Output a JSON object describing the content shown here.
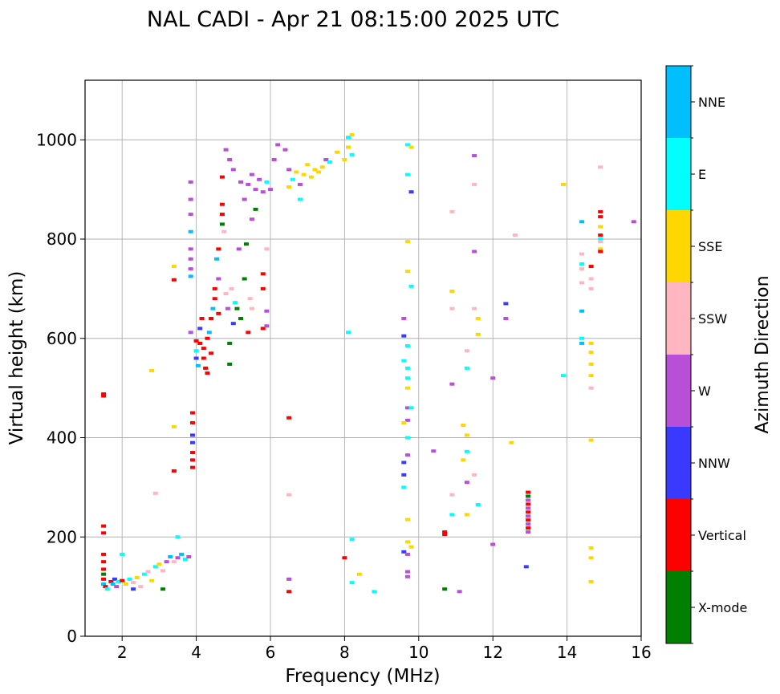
{
  "chart_data": {
    "type": "scatter",
    "title": "NAL CADI - Apr 21 08:15:00 2025 UTC",
    "xlabel": "Frequency (MHz)",
    "ylabel": "Virtual height (km)",
    "xlim": [
      1,
      16
    ],
    "ylim": [
      0,
      1120
    ],
    "xticks": [
      2,
      4,
      6,
      8,
      10,
      12,
      14,
      16
    ],
    "yticks": [
      0,
      200,
      400,
      600,
      800,
      1000
    ],
    "grid": true,
    "colorbar": {
      "label": "Azimuth Direction",
      "position": "right",
      "categories": [
        {
          "label": "X-mode",
          "color": "#008000"
        },
        {
          "label": "Vertical",
          "color": "#ff0000"
        },
        {
          "label": "NNW",
          "color": "#3a3aff"
        },
        {
          "label": "W",
          "color": "#b94fd8"
        },
        {
          "label": "SSW",
          "color": "#ffb6c1"
        },
        {
          "label": "SSE",
          "color": "#ffd700"
        },
        {
          "label": "E",
          "color": "#00ffff"
        },
        {
          "label": "NNE",
          "color": "#00bfff"
        }
      ]
    },
    "points": [
      {
        "x": 1.5,
        "y": 488,
        "c": 1
      },
      {
        "x": 1.5,
        "y": 484,
        "c": 1
      },
      {
        "x": 1.5,
        "y": 222,
        "c": 1
      },
      {
        "x": 1.5,
        "y": 208,
        "c": 1
      },
      {
        "x": 1.5,
        "y": 165,
        "c": 1
      },
      {
        "x": 1.5,
        "y": 150,
        "c": 1
      },
      {
        "x": 1.5,
        "y": 135,
        "c": 1
      },
      {
        "x": 1.5,
        "y": 125,
        "c": 0
      },
      {
        "x": 1.5,
        "y": 115,
        "c": 1
      },
      {
        "x": 1.5,
        "y": 105,
        "c": 7
      },
      {
        "x": 1.55,
        "y": 100,
        "c": 1
      },
      {
        "x": 1.6,
        "y": 95,
        "c": 6
      },
      {
        "x": 1.7,
        "y": 110,
        "c": 1
      },
      {
        "x": 1.75,
        "y": 105,
        "c": 7
      },
      {
        "x": 1.8,
        "y": 115,
        "c": 2
      },
      {
        "x": 1.85,
        "y": 100,
        "c": 3
      },
      {
        "x": 1.9,
        "y": 110,
        "c": 6
      },
      {
        "x": 2.0,
        "y": 112,
        "c": 1
      },
      {
        "x": 2.1,
        "y": 105,
        "c": 5
      },
      {
        "x": 2.2,
        "y": 115,
        "c": 6
      },
      {
        "x": 2.3,
        "y": 108,
        "c": 4
      },
      {
        "x": 2.4,
        "y": 118,
        "c": 5
      },
      {
        "x": 2.5,
        "y": 100,
        "c": 4
      },
      {
        "x": 2.6,
        "y": 125,
        "c": 6
      },
      {
        "x": 2.7,
        "y": 130,
        "c": 4
      },
      {
        "x": 2.8,
        "y": 112,
        "c": 5
      },
      {
        "x": 2.9,
        "y": 140,
        "c": 6
      },
      {
        "x": 3.0,
        "y": 145,
        "c": 5
      },
      {
        "x": 3.1,
        "y": 132,
        "c": 4
      },
      {
        "x": 3.2,
        "y": 150,
        "c": 3
      },
      {
        "x": 3.3,
        "y": 160,
        "c": 7
      },
      {
        "x": 3.4,
        "y": 150,
        "c": 4
      },
      {
        "x": 3.5,
        "y": 158,
        "c": 3
      },
      {
        "x": 3.6,
        "y": 165,
        "c": 7
      },
      {
        "x": 3.7,
        "y": 155,
        "c": 6
      },
      {
        "x": 3.8,
        "y": 160,
        "c": 3
      },
      {
        "x": 2.0,
        "y": 165,
        "c": 6
      },
      {
        "x": 2.3,
        "y": 95,
        "c": 2
      },
      {
        "x": 3.1,
        "y": 95,
        "c": 0
      },
      {
        "x": 3.5,
        "y": 200,
        "c": 6
      },
      {
        "x": 2.8,
        "y": 535,
        "c": 5
      },
      {
        "x": 2.9,
        "y": 288,
        "c": 4
      },
      {
        "x": 3.4,
        "y": 422,
        "c": 5
      },
      {
        "x": 3.4,
        "y": 333,
        "c": 1
      },
      {
        "x": 3.4,
        "y": 745,
        "c": 5
      },
      {
        "x": 3.4,
        "y": 718,
        "c": 1
      },
      {
        "x": 3.85,
        "y": 915,
        "c": 3
      },
      {
        "x": 3.85,
        "y": 880,
        "c": 3
      },
      {
        "x": 3.85,
        "y": 850,
        "c": 3
      },
      {
        "x": 3.85,
        "y": 815,
        "c": 7
      },
      {
        "x": 3.85,
        "y": 780,
        "c": 3
      },
      {
        "x": 3.85,
        "y": 760,
        "c": 3
      },
      {
        "x": 3.85,
        "y": 740,
        "c": 3
      },
      {
        "x": 3.85,
        "y": 725,
        "c": 7
      },
      {
        "x": 3.85,
        "y": 612,
        "c": 3
      },
      {
        "x": 3.9,
        "y": 450,
        "c": 1
      },
      {
        "x": 3.9,
        "y": 430,
        "c": 1
      },
      {
        "x": 3.9,
        "y": 405,
        "c": 2
      },
      {
        "x": 3.9,
        "y": 390,
        "c": 2
      },
      {
        "x": 3.9,
        "y": 370,
        "c": 1
      },
      {
        "x": 3.9,
        "y": 355,
        "c": 1
      },
      {
        "x": 3.9,
        "y": 340,
        "c": 1
      },
      {
        "x": 4.0,
        "y": 595,
        "c": 1
      },
      {
        "x": 4.0,
        "y": 575,
        "c": 6
      },
      {
        "x": 4.0,
        "y": 560,
        "c": 2
      },
      {
        "x": 4.05,
        "y": 545,
        "c": 7
      },
      {
        "x": 4.1,
        "y": 620,
        "c": 2
      },
      {
        "x": 4.1,
        "y": 590,
        "c": 1
      },
      {
        "x": 4.15,
        "y": 640,
        "c": 1
      },
      {
        "x": 4.2,
        "y": 580,
        "c": 1
      },
      {
        "x": 4.2,
        "y": 560,
        "c": 1
      },
      {
        "x": 4.25,
        "y": 540,
        "c": 1
      },
      {
        "x": 4.3,
        "y": 600,
        "c": 1
      },
      {
        "x": 4.3,
        "y": 530,
        "c": 1
      },
      {
        "x": 4.35,
        "y": 612,
        "c": 7
      },
      {
        "x": 4.4,
        "y": 570,
        "c": 1
      },
      {
        "x": 4.4,
        "y": 640,
        "c": 1
      },
      {
        "x": 4.45,
        "y": 660,
        "c": 7
      },
      {
        "x": 4.5,
        "y": 700,
        "c": 1
      },
      {
        "x": 4.5,
        "y": 680,
        "c": 1
      },
      {
        "x": 4.55,
        "y": 760,
        "c": 7
      },
      {
        "x": 4.6,
        "y": 780,
        "c": 1
      },
      {
        "x": 4.6,
        "y": 720,
        "c": 3
      },
      {
        "x": 4.6,
        "y": 650,
        "c": 1
      },
      {
        "x": 4.7,
        "y": 870,
        "c": 1
      },
      {
        "x": 4.7,
        "y": 850,
        "c": 1
      },
      {
        "x": 4.7,
        "y": 830,
        "c": 0
      },
      {
        "x": 4.7,
        "y": 925,
        "c": 1
      },
      {
        "x": 4.75,
        "y": 815,
        "c": 4
      },
      {
        "x": 4.8,
        "y": 690,
        "c": 4
      },
      {
        "x": 4.85,
        "y": 660,
        "c": 3
      },
      {
        "x": 4.9,
        "y": 590,
        "c": 0
      },
      {
        "x": 4.9,
        "y": 548,
        "c": 0
      },
      {
        "x": 4.95,
        "y": 700,
        "c": 4
      },
      {
        "x": 5.0,
        "y": 630,
        "c": 2
      },
      {
        "x": 5.05,
        "y": 672,
        "c": 6
      },
      {
        "x": 5.1,
        "y": 660,
        "c": 0
      },
      {
        "x": 5.15,
        "y": 780,
        "c": 3
      },
      {
        "x": 5.2,
        "y": 640,
        "c": 0
      },
      {
        "x": 5.3,
        "y": 720,
        "c": 0
      },
      {
        "x": 5.35,
        "y": 790,
        "c": 0
      },
      {
        "x": 5.4,
        "y": 612,
        "c": 1
      },
      {
        "x": 5.45,
        "y": 680,
        "c": 4
      },
      {
        "x": 5.5,
        "y": 660,
        "c": 4
      },
      {
        "x": 4.8,
        "y": 980,
        "c": 3
      },
      {
        "x": 4.9,
        "y": 960,
        "c": 3
      },
      {
        "x": 5.0,
        "y": 940,
        "c": 3
      },
      {
        "x": 5.2,
        "y": 915,
        "c": 3
      },
      {
        "x": 5.3,
        "y": 880,
        "c": 3
      },
      {
        "x": 5.4,
        "y": 910,
        "c": 3
      },
      {
        "x": 5.5,
        "y": 930,
        "c": 3
      },
      {
        "x": 5.6,
        "y": 900,
        "c": 3
      },
      {
        "x": 5.7,
        "y": 920,
        "c": 3
      },
      {
        "x": 5.8,
        "y": 895,
        "c": 3
      },
      {
        "x": 5.9,
        "y": 915,
        "c": 6
      },
      {
        "x": 6.0,
        "y": 900,
        "c": 3
      },
      {
        "x": 6.1,
        "y": 960,
        "c": 3
      },
      {
        "x": 6.2,
        "y": 990,
        "c": 3
      },
      {
        "x": 5.6,
        "y": 860,
        "c": 0
      },
      {
        "x": 5.5,
        "y": 840,
        "c": 3
      },
      {
        "x": 5.9,
        "y": 780,
        "c": 4
      },
      {
        "x": 5.8,
        "y": 730,
        "c": 1
      },
      {
        "x": 5.8,
        "y": 700,
        "c": 1
      },
      {
        "x": 5.8,
        "y": 620,
        "c": 1
      },
      {
        "x": 5.9,
        "y": 655,
        "c": 3
      },
      {
        "x": 5.9,
        "y": 625,
        "c": 3
      },
      {
        "x": 6.4,
        "y": 980,
        "c": 3
      },
      {
        "x": 6.5,
        "y": 940,
        "c": 3
      },
      {
        "x": 6.6,
        "y": 920,
        "c": 6
      },
      {
        "x": 6.7,
        "y": 935,
        "c": 5
      },
      {
        "x": 6.8,
        "y": 910,
        "c": 3
      },
      {
        "x": 6.9,
        "y": 930,
        "c": 5
      },
      {
        "x": 7.0,
        "y": 950,
        "c": 5
      },
      {
        "x": 7.1,
        "y": 925,
        "c": 5
      },
      {
        "x": 7.2,
        "y": 940,
        "c": 5
      },
      {
        "x": 7.3,
        "y": 935,
        "c": 5
      },
      {
        "x": 7.4,
        "y": 945,
        "c": 5
      },
      {
        "x": 7.5,
        "y": 960,
        "c": 3
      },
      {
        "x": 7.6,
        "y": 955,
        "c": 6
      },
      {
        "x": 7.8,
        "y": 975,
        "c": 5
      },
      {
        "x": 8.0,
        "y": 960,
        "c": 5
      },
      {
        "x": 8.1,
        "y": 985,
        "c": 5
      },
      {
        "x": 8.2,
        "y": 1010,
        "c": 5
      },
      {
        "x": 8.1,
        "y": 1005,
        "c": 6
      },
      {
        "x": 8.2,
        "y": 970,
        "c": 6
      },
      {
        "x": 6.8,
        "y": 880,
        "c": 6
      },
      {
        "x": 6.5,
        "y": 905,
        "c": 5
      },
      {
        "x": 6.5,
        "y": 440,
        "c": 1
      },
      {
        "x": 6.5,
        "y": 285,
        "c": 4
      },
      {
        "x": 6.5,
        "y": 115,
        "c": 3
      },
      {
        "x": 6.5,
        "y": 90,
        "c": 1
      },
      {
        "x": 8.0,
        "y": 158,
        "c": 1
      },
      {
        "x": 8.1,
        "y": 612,
        "c": 6
      },
      {
        "x": 8.2,
        "y": 195,
        "c": 6
      },
      {
        "x": 8.2,
        "y": 108,
        "c": 6
      },
      {
        "x": 8.4,
        "y": 125,
        "c": 5
      },
      {
        "x": 8.8,
        "y": 90,
        "c": 6
      },
      {
        "x": 9.7,
        "y": 990,
        "c": 6
      },
      {
        "x": 9.8,
        "y": 985,
        "c": 5
      },
      {
        "x": 9.7,
        "y": 930,
        "c": 6
      },
      {
        "x": 9.8,
        "y": 895,
        "c": 2
      },
      {
        "x": 9.7,
        "y": 795,
        "c": 5
      },
      {
        "x": 9.7,
        "y": 735,
        "c": 5
      },
      {
        "x": 9.8,
        "y": 705,
        "c": 6
      },
      {
        "x": 9.6,
        "y": 640,
        "c": 3
      },
      {
        "x": 9.6,
        "y": 605,
        "c": 2
      },
      {
        "x": 9.7,
        "y": 585,
        "c": 6
      },
      {
        "x": 9.6,
        "y": 555,
        "c": 6
      },
      {
        "x": 9.7,
        "y": 540,
        "c": 6
      },
      {
        "x": 9.7,
        "y": 520,
        "c": 6
      },
      {
        "x": 9.7,
        "y": 500,
        "c": 5
      },
      {
        "x": 9.7,
        "y": 460,
        "c": 3
      },
      {
        "x": 9.8,
        "y": 460,
        "c": 6
      },
      {
        "x": 9.7,
        "y": 435,
        "c": 3
      },
      {
        "x": 9.6,
        "y": 430,
        "c": 5
      },
      {
        "x": 9.7,
        "y": 400,
        "c": 6
      },
      {
        "x": 9.7,
        "y": 365,
        "c": 3
      },
      {
        "x": 9.6,
        "y": 350,
        "c": 2
      },
      {
        "x": 9.6,
        "y": 325,
        "c": 2
      },
      {
        "x": 9.6,
        "y": 300,
        "c": 6
      },
      {
        "x": 9.7,
        "y": 235,
        "c": 5
      },
      {
        "x": 9.7,
        "y": 190,
        "c": 5
      },
      {
        "x": 9.8,
        "y": 180,
        "c": 5
      },
      {
        "x": 9.6,
        "y": 170,
        "c": 2
      },
      {
        "x": 9.7,
        "y": 165,
        "c": 3
      },
      {
        "x": 9.7,
        "y": 130,
        "c": 3
      },
      {
        "x": 9.7,
        "y": 120,
        "c": 3
      },
      {
        "x": 10.4,
        "y": 373,
        "c": 3
      },
      {
        "x": 10.7,
        "y": 210,
        "c": 1
      },
      {
        "x": 10.7,
        "y": 205,
        "c": 1
      },
      {
        "x": 10.7,
        "y": 95,
        "c": 0
      },
      {
        "x": 10.9,
        "y": 855,
        "c": 4
      },
      {
        "x": 10.9,
        "y": 695,
        "c": 5
      },
      {
        "x": 10.9,
        "y": 660,
        "c": 4
      },
      {
        "x": 10.9,
        "y": 508,
        "c": 3
      },
      {
        "x": 10.9,
        "y": 285,
        "c": 4
      },
      {
        "x": 10.9,
        "y": 245,
        "c": 6
      },
      {
        "x": 11.2,
        "y": 425,
        "c": 5
      },
      {
        "x": 11.2,
        "y": 355,
        "c": 5
      },
      {
        "x": 11.3,
        "y": 575,
        "c": 4
      },
      {
        "x": 11.3,
        "y": 540,
        "c": 6
      },
      {
        "x": 11.3,
        "y": 405,
        "c": 5
      },
      {
        "x": 11.3,
        "y": 372,
        "c": 6
      },
      {
        "x": 11.3,
        "y": 310,
        "c": 3
      },
      {
        "x": 11.3,
        "y": 245,
        "c": 5
      },
      {
        "x": 11.5,
        "y": 968,
        "c": 3
      },
      {
        "x": 11.5,
        "y": 910,
        "c": 4
      },
      {
        "x": 11.5,
        "y": 775,
        "c": 3
      },
      {
        "x": 11.5,
        "y": 660,
        "c": 4
      },
      {
        "x": 11.6,
        "y": 640,
        "c": 5
      },
      {
        "x": 11.6,
        "y": 608,
        "c": 5
      },
      {
        "x": 11.5,
        "y": 325,
        "c": 4
      },
      {
        "x": 11.6,
        "y": 265,
        "c": 6
      },
      {
        "x": 11.1,
        "y": 90,
        "c": 3
      },
      {
        "x": 12.0,
        "y": 520,
        "c": 3
      },
      {
        "x": 12.0,
        "y": 185,
        "c": 3
      },
      {
        "x": 12.35,
        "y": 670,
        "c": 2
      },
      {
        "x": 12.35,
        "y": 640,
        "c": 3
      },
      {
        "x": 12.5,
        "y": 390,
        "c": 5
      },
      {
        "x": 12.6,
        "y": 808,
        "c": 4
      },
      {
        "x": 12.9,
        "y": 140,
        "c": 2
      },
      {
        "x": 12.95,
        "y": 290,
        "c": 1
      },
      {
        "x": 12.95,
        "y": 282,
        "c": 0
      },
      {
        "x": 12.95,
        "y": 274,
        "c": 3
      },
      {
        "x": 12.95,
        "y": 266,
        "c": 1
      },
      {
        "x": 12.95,
        "y": 258,
        "c": 3
      },
      {
        "x": 12.95,
        "y": 250,
        "c": 1
      },
      {
        "x": 12.95,
        "y": 242,
        "c": 3
      },
      {
        "x": 12.95,
        "y": 234,
        "c": 1
      },
      {
        "x": 12.95,
        "y": 226,
        "c": 3
      },
      {
        "x": 12.95,
        "y": 218,
        "c": 1
      },
      {
        "x": 12.95,
        "y": 210,
        "c": 3
      },
      {
        "x": 13.9,
        "y": 910,
        "c": 5
      },
      {
        "x": 13.9,
        "y": 525,
        "c": 6
      },
      {
        "x": 14.4,
        "y": 835,
        "c": 7
      },
      {
        "x": 14.4,
        "y": 770,
        "c": 4
      },
      {
        "x": 14.4,
        "y": 750,
        "c": 6
      },
      {
        "x": 14.4,
        "y": 740,
        "c": 4
      },
      {
        "x": 14.4,
        "y": 712,
        "c": 4
      },
      {
        "x": 14.4,
        "y": 655,
        "c": 7
      },
      {
        "x": 14.4,
        "y": 600,
        "c": 6
      },
      {
        "x": 14.4,
        "y": 590,
        "c": 7
      },
      {
        "x": 14.65,
        "y": 745,
        "c": 1
      },
      {
        "x": 14.65,
        "y": 720,
        "c": 4
      },
      {
        "x": 14.65,
        "y": 700,
        "c": 4
      },
      {
        "x": 14.65,
        "y": 590,
        "c": 5
      },
      {
        "x": 14.65,
        "y": 572,
        "c": 5
      },
      {
        "x": 14.65,
        "y": 548,
        "c": 5
      },
      {
        "x": 14.65,
        "y": 525,
        "c": 5
      },
      {
        "x": 14.65,
        "y": 500,
        "c": 4
      },
      {
        "x": 14.65,
        "y": 395,
        "c": 5
      },
      {
        "x": 14.65,
        "y": 178,
        "c": 5
      },
      {
        "x": 14.65,
        "y": 158,
        "c": 5
      },
      {
        "x": 14.65,
        "y": 110,
        "c": 5
      },
      {
        "x": 14.9,
        "y": 945,
        "c": 4
      },
      {
        "x": 14.9,
        "y": 855,
        "c": 1
      },
      {
        "x": 14.9,
        "y": 845,
        "c": 1
      },
      {
        "x": 14.9,
        "y": 825,
        "c": 5
      },
      {
        "x": 14.9,
        "y": 808,
        "c": 1
      },
      {
        "x": 14.9,
        "y": 800,
        "c": 6
      },
      {
        "x": 14.9,
        "y": 795,
        "c": 4
      },
      {
        "x": 14.9,
        "y": 780,
        "c": 5
      },
      {
        "x": 14.9,
        "y": 775,
        "c": 1
      },
      {
        "x": 15.8,
        "y": 835,
        "c": 3
      }
    ]
  }
}
